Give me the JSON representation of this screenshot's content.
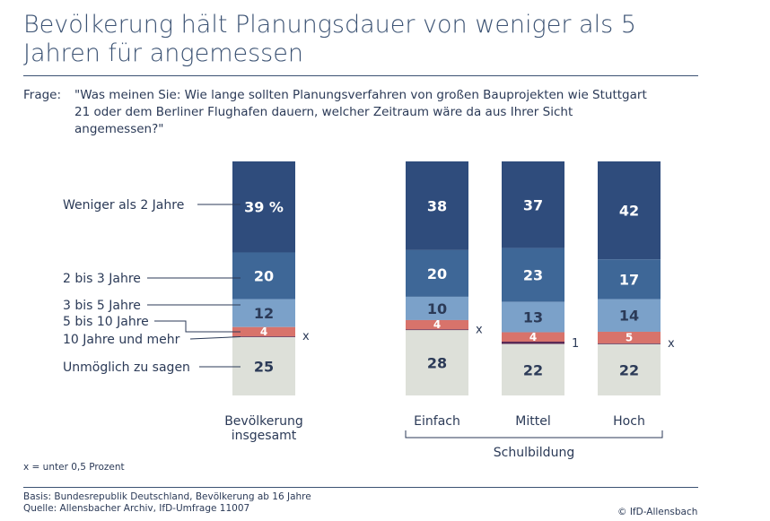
{
  "title": "Bevölkerung hält Planungsdauer von weniger als 5 Jahren für angemessen",
  "question_label": "Frage:",
  "question": "\"Was meinen Sie: Wie lange sollten Planungsverfahren von großen Bauprojekten wie Stuttgart 21 oder dem Berliner Flughafen dauern, welcher Zeitraum wäre da aus Ihrer Sicht angemessen?\"",
  "note": "x = unter 0,5 Prozent",
  "basis": "Basis: Bundesrepublik Deutschland, Bevölkerung ab 16 Jahre",
  "source": "Quelle: Allensbacher Archiv, IfD-Umfrage 11007",
  "copyright": "© IfD-Allensbach",
  "chart_data": {
    "type": "bar",
    "stacked": true,
    "unit": "%",
    "group_label": "Schulbildung",
    "categories": [
      "Bevölkerung insgesamt",
      "Einfach",
      "Mittel",
      "Hoch"
    ],
    "series": [
      {
        "name": "Weniger als 2 Jahre",
        "color": "#2f4c7c",
        "values": [
          39,
          38,
          37,
          42
        ],
        "labels": [
          "39 %",
          "38",
          "37",
          "42"
        ]
      },
      {
        "name": "2 bis 3 Jahre",
        "color": "#3e6797",
        "values": [
          20,
          20,
          23,
          17
        ],
        "labels": [
          "20",
          "20",
          "23",
          "17"
        ]
      },
      {
        "name": "3 bis 5 Jahre",
        "color": "#7ba1c9",
        "values": [
          12,
          10,
          13,
          14
        ],
        "labels": [
          "12",
          "10",
          "13",
          "14"
        ]
      },
      {
        "name": "5 bis 10 Jahre",
        "color": "#d8736b",
        "values": [
          4,
          4,
          4,
          5
        ],
        "labels": [
          "4",
          "4",
          "4",
          "5"
        ]
      },
      {
        "name": "10 Jahre und mehr",
        "color": "#5a2a55",
        "values": [
          0.3,
          0.3,
          1,
          0.3
        ],
        "labels": [
          "x",
          "x",
          "1",
          "x"
        ]
      },
      {
        "name": "Unmöglich zu sagen",
        "color": "#dde0d9",
        "values": [
          25,
          28,
          22,
          22
        ],
        "labels": [
          "25",
          "28",
          "22",
          "22"
        ]
      }
    ]
  }
}
